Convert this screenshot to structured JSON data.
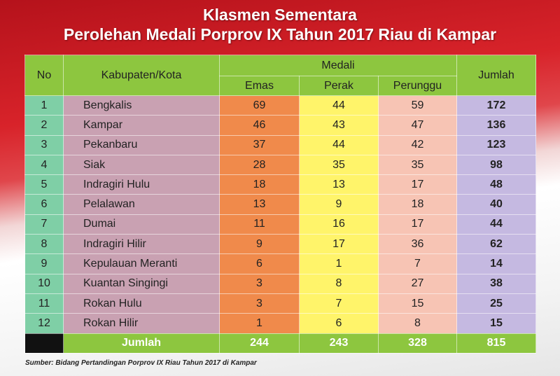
{
  "header": {
    "title": "Klasmen Sementara",
    "subtitle": "Perolehan Medali Porprov IX Tahun 2017 Riau di Kampar"
  },
  "table": {
    "columns": [
      "No",
      "Kabupaten/Kota",
      "Emas",
      "Perak",
      "Perunggu",
      "Jumlah"
    ],
    "group": "Medali",
    "rows": [
      [
        1,
        "Bengkalis",
        69,
        44,
        59,
        172
      ],
      [
        2,
        "Kampar",
        46,
        43,
        47,
        136
      ],
      [
        3,
        "Pekanbaru",
        37,
        44,
        42,
        123
      ],
      [
        4,
        "Siak",
        28,
        35,
        35,
        98
      ],
      [
        5,
        "Indragiri Hulu",
        18,
        13,
        17,
        48
      ],
      [
        6,
        "Pelalawan",
        13,
        9,
        18,
        40
      ],
      [
        7,
        "Dumai",
        11,
        16,
        17,
        44
      ],
      [
        8,
        "Indragiri Hilir",
        9,
        17,
        36,
        62
      ],
      [
        9,
        "Kepulauan Meranti",
        6,
        1,
        7,
        14
      ],
      [
        10,
        "Kuantan Singingi",
        3,
        8,
        27,
        38
      ],
      [
        11,
        "Rokan Hulu",
        3,
        7,
        15,
        25
      ],
      [
        12,
        "Rokan Hilir",
        1,
        6,
        8,
        15
      ]
    ],
    "total": [
      "Jumlah",
      244,
      243,
      328,
      815
    ]
  },
  "footer": {
    "source": "Sumber: Bidang Pertandingan Porprov IX Riau Tahun 2017 di Kampar"
  }
}
